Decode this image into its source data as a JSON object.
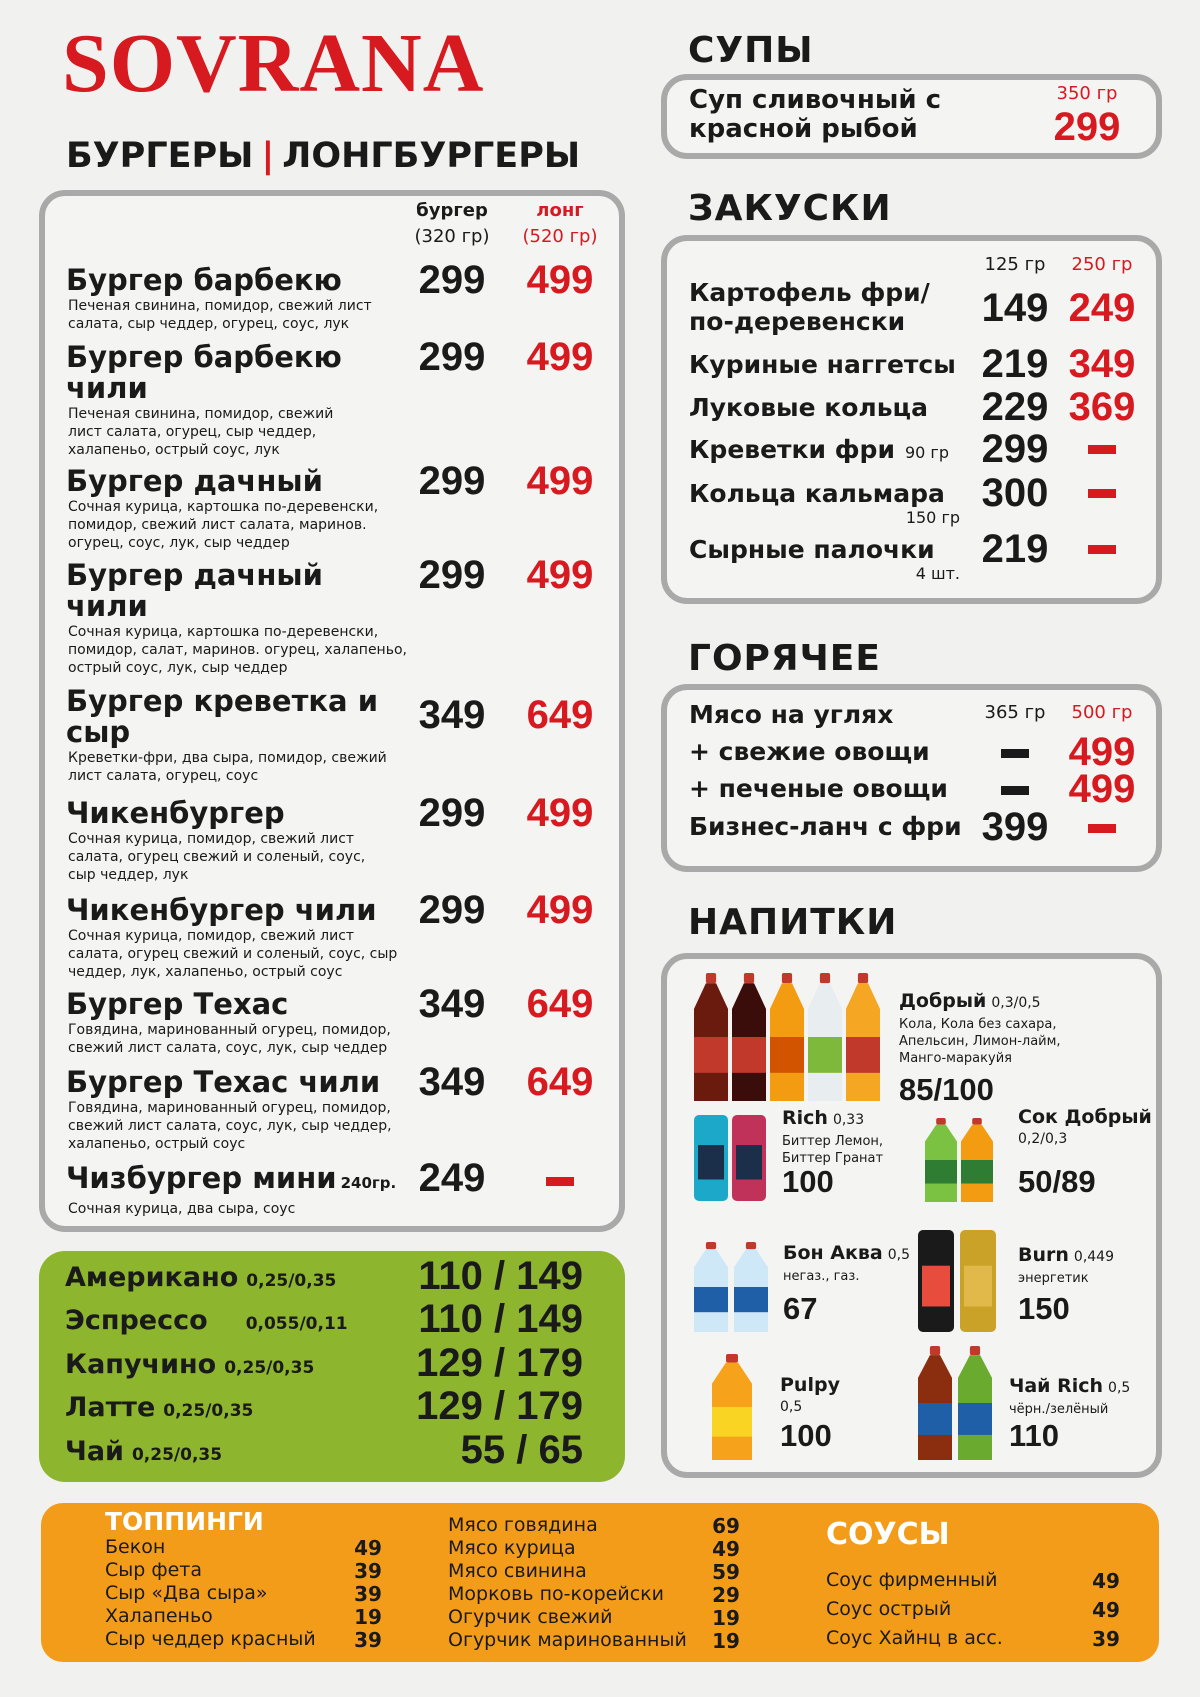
{
  "brand": "SOVRANA",
  "burgers": {
    "title_left": "БУРГЕРЫ",
    "separator": "|",
    "title_right": "ЛОНГБУРГЕРЫ",
    "col1": "бургер",
    "col1_weight": "(320 гр)",
    "col2": "лонг",
    "col2_weight": "(520 гр)",
    "items": [
      {
        "name": "Бургер барбекю",
        "desc": "Печеная свинина, помидор, свежий лист салата, сыр чеддер, огурец, соус, лук",
        "price": 299,
        "long": 499
      },
      {
        "name": "Бургер барбекю чили",
        "desc": "Печеная свинина, помидор, свежий лист салата, огурец, сыр чеддер, халапеньо, острый соус, лук",
        "price": 299,
        "long": 499
      },
      {
        "name": "Бургер дачный",
        "desc": "Сочная курица, картошка по-деревенски, помидор, свежий лист салата, маринов. огурец, соус, лук, сыр чеддер",
        "price": 299,
        "long": 499
      },
      {
        "name": "Бургер дачный чили",
        "desc": "Сочная курица, картошка по-деревенски, помидор, салат, маринов. огурец, халапеньо, острый соус, лук, сыр чеддер",
        "price": 299,
        "long": 499
      },
      {
        "name": "Бургер креветка и сыр",
        "desc": "Креветки-фри, два сыра, помидор, свежий лист салата, огурец, соус",
        "price": 349,
        "long": 649
      },
      {
        "name": "Чикенбургер",
        "desc": "Сочная курица, помидор, свежий лист салата, огурец свежий и соленый, соус, сыр чеддер, лук",
        "price": 299,
        "long": 499
      },
      {
        "name": "Чикенбургер чили",
        "desc": "Сочная курица, помидор, свежий лист салата, огурец свежий и соленый, соус, сыр чеддер, лук, халапеньо, острый соус",
        "price": 299,
        "long": 499
      },
      {
        "name": "Бургер Техас",
        "desc": "Говядина, маринованный огурец, помидор, свежий лист салата, соус, лук, сыр чеддер",
        "price": 349,
        "long": 649
      },
      {
        "name": "Бургер Техас чили",
        "desc": "Говядина, маринованный огурец, помидор, свежий лист салата, соус, лук, сыр чеддер, халапеньо, острый соус",
        "price": 349,
        "long": 649
      },
      {
        "name": "Чизбургер мини",
        "weight": "240гр.",
        "desc": "Сочная курица, два сыра, соус",
        "price": 249,
        "long": null
      }
    ]
  },
  "coffee": [
    {
      "name": "Американо",
      "volume": "0,25/0,35",
      "price": "110 / 149"
    },
    {
      "name": "Эспрессо",
      "volume": "0,055/0,11",
      "price": "110 / 149"
    },
    {
      "name": "Капучино",
      "volume": "0,25/0,35",
      "price": "129 / 179"
    },
    {
      "name": "Латте",
      "volume": "0,25/0,35",
      "price": "129 / 179"
    },
    {
      "name": "Чай",
      "volume": "0,25/0,35",
      "price": "55 / 65"
    }
  ],
  "soups": {
    "title": "СУПЫ",
    "name": "Суп сливочный с красной рыбой",
    "weight": "350 гр",
    "price": 299
  },
  "snacks": {
    "title": "ЗАКУСКИ",
    "col1": "125 гр",
    "col2": "250 гр",
    "items": [
      {
        "name": "Картофель фри/ по-деревенски",
        "price": 149,
        "large": 249
      },
      {
        "name": "Куриные наггетсы",
        "price": 219,
        "large": 349
      },
      {
        "name": "Луковые кольца",
        "price": 229,
        "large": 369
      },
      {
        "name": "Креветки фри",
        "weight": "90 гр",
        "price": 299,
        "large": null
      },
      {
        "name": "Кольца кальмара",
        "weight": "150 гр",
        "price": 300,
        "large": null
      },
      {
        "name": "Сырные палочки",
        "weight": "4 шт.",
        "price": 219,
        "large": null
      }
    ]
  },
  "hot": {
    "title": "ГОРЯЧЕЕ",
    "col1": "365 гр",
    "col2": "500 гр",
    "items": [
      {
        "name": "Мясо на углях",
        "price": null,
        "large": null
      },
      {
        "name": "+ свежие овощи",
        "price": null,
        "large": 499
      },
      {
        "name": "+ печеные овощи",
        "price": null,
        "large": 499
      },
      {
        "name": "Бизнес-ланч с фри",
        "price": 399,
        "large": null
      }
    ]
  },
  "drinks": {
    "title": "НАПИТКИ",
    "items": [
      {
        "name": "Добрый",
        "volume": "0,3/0,5",
        "desc": "Кола, Кола без сахара, Апельсин, Лимон-лайм, Манго-маракуйя",
        "price": "85/100"
      },
      {
        "name": "Rich",
        "volume": "0,33",
        "desc": "Биттер Лемон, Биттер Гранат",
        "price": 100
      },
      {
        "name": "Сок Добрый",
        "volume": "0,2/0,3",
        "desc": null,
        "price": "50/89"
      },
      {
        "name": "Бон Аква",
        "volume": "0,5",
        "desc": "негаз., газ.",
        "price": 67
      },
      {
        "name": "Burn",
        "volume": "0,449",
        "desc": "энергетик",
        "price": 150
      },
      {
        "name": "Pulpy",
        "volume": "0,5",
        "desc": null,
        "price": 100
      },
      {
        "name": "Чай Rich",
        "volume": "0,5",
        "desc": "чёрн./зелёный",
        "price": 110
      }
    ]
  },
  "toppings": {
    "title": "ТОППИНГИ",
    "items": [
      {
        "name": "Бекон",
        "price": 49
      },
      {
        "name": "Сыр фета",
        "price": 39
      },
      {
        "name": "Сыр «Два сыра»",
        "price": 39
      },
      {
        "name": "Халапеньо",
        "price": 19
      },
      {
        "name": "Сыр чеддер красный",
        "price": 39
      },
      {
        "name": "Мясо говядина",
        "price": 69
      },
      {
        "name": "Мясо курица",
        "price": 49
      },
      {
        "name": "Мясо свинина",
        "price": 59
      },
      {
        "name": "Морковь по-корейски",
        "price": 29
      },
      {
        "name": "Огурчик свежий",
        "price": 19
      },
      {
        "name": "Огурчик маринованный",
        "price": 19
      }
    ]
  },
  "sauces": {
    "title": "СОУСЫ",
    "items": [
      {
        "name": "Соус фирменный",
        "price": 49
      },
      {
        "name": "Соус острый",
        "price": 49
      },
      {
        "name": "Соус Хайнц в асс.",
        "price": 39
      }
    ]
  }
}
